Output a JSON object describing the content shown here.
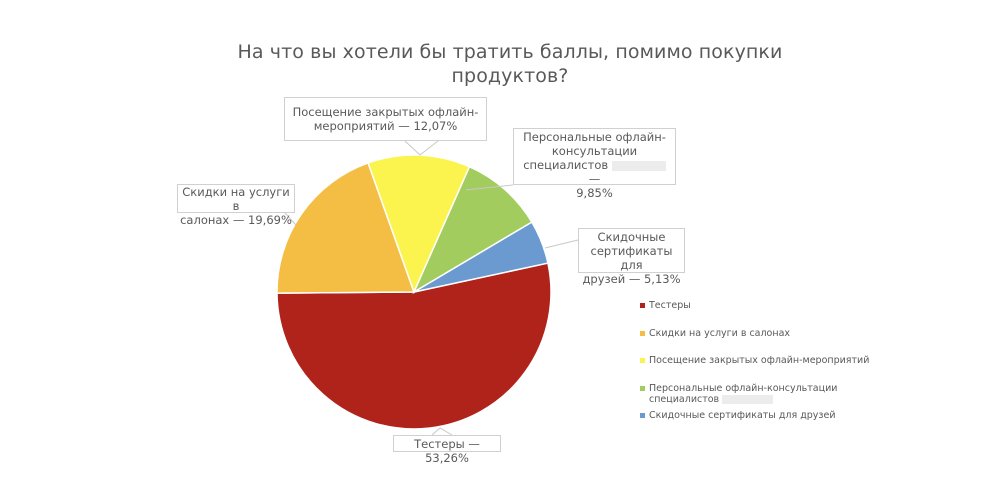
{
  "chart_data": {
    "type": "pie",
    "title": "На что вы хотели бы тратить баллы, помимо покупки продуктов?",
    "title_lines": [
      "На что вы хотели бы тратить баллы, помимо покупки",
      "продуктов?"
    ],
    "categories": [
      "Тестеры",
      "Скидки на услуги в салонах",
      "Посещение закрытых офлайн-мероприятий",
      "Персональные офлайн-консультации специалистов",
      "Скидочные сертификаты для друзей"
    ],
    "values": [
      53.26,
      19.69,
      12.07,
      9.85,
      5.13
    ],
    "value_labels": [
      "53,26%",
      "19,69%",
      "12,07%",
      "9,85%",
      "5,13%"
    ],
    "colors": [
      "#B0231A",
      "#F4BE45",
      "#FBF44E",
      "#A2CD5E",
      "#6A9AD0"
    ],
    "start_angle_deg": -12.2,
    "direction": "clockwise",
    "legend_position": "right",
    "data_labels": [
      {
        "lines": [
          "Тестеры — 53,26%"
        ]
      },
      {
        "lines": [
          "Скидки на услуги в",
          "салонах — 19,69%"
        ]
      },
      {
        "lines": [
          "Посещение закрытых офлайн-",
          "мероприятий — 12,07%"
        ]
      },
      {
        "lines": [
          "Персональные офлайн-",
          "консультации",
          "специалистов",
          "—",
          "9,85%"
        ]
      },
      {
        "lines": [
          "Скидочные",
          "сертификаты для",
          "друзей — 5,13%"
        ]
      }
    ]
  },
  "legend": {
    "items": [
      {
        "label": "Тестеры",
        "color": "#B0231A"
      },
      {
        "label": "Скидки на услуги в салонах",
        "color": "#F4BE45"
      },
      {
        "label": "Посещение закрытых офлайн-мероприятий",
        "color": "#FBF44E"
      },
      {
        "label": "Персональные офлайн-консультации",
        "label2": "специалистов",
        "color": "#A2CD5E"
      },
      {
        "label": "Скидочные сертификаты для друзей",
        "color": "#6A9AD0"
      }
    ]
  }
}
